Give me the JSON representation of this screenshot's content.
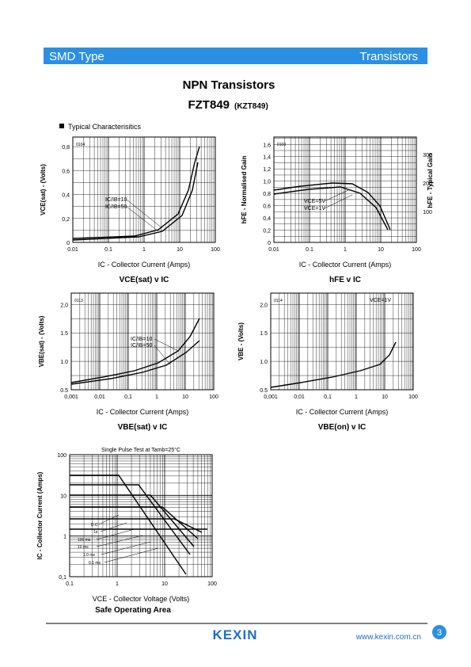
{
  "header": {
    "left": "SMD Type",
    "right": "Transistors"
  },
  "title": "NPN Transistors",
  "part": "FZT849",
  "alt_part": "(KZT849)",
  "section": "Typical Characterisitics",
  "figures": [
    {
      "code": "0104",
      "ylabel": "VCE(sat) - (Volts)",
      "xlabel": "IC - Collector Current (Amps)",
      "caption": "VCE(sat) v IC",
      "yticks": [
        "0",
        "0,2",
        "0,4",
        "0,6",
        "0,8"
      ],
      "xticks": [
        "0.01",
        "0.1",
        "1",
        "10",
        "100"
      ],
      "annotations": [
        "IC/IB=10",
        "IC/IB=50"
      ]
    },
    {
      "code": "0103",
      "ylabel": "hFE - Normalised Gain",
      "y2label": "hFE - Typical Gain",
      "xlabel": "IC - Collector Current (Amps)",
      "caption": "hFE v IC",
      "yticks": [
        "0",
        "0,2",
        "0,4",
        "0,6",
        "0,8",
        "1,0",
        "1,2",
        "1,4",
        "1,6"
      ],
      "y2ticks": [
        "100",
        "200",
        "300"
      ],
      "xticks": [
        "0.01",
        "0.1",
        "1",
        "10",
        "100"
      ],
      "annotations": [
        "VCE=5V",
        "VCE=1V"
      ]
    },
    {
      "code": "0113",
      "ylabel": "VBE(sat) - (Volts)",
      "xlabel": "IC - Collector Current (Amps)",
      "caption": "VBE(sat) v IC",
      "yticks": [
        "0.5",
        "1.0",
        "1.5",
        "2,0"
      ],
      "xticks": [
        "0,001",
        "0,01",
        "0,1",
        "1",
        "10",
        "100"
      ],
      "annotations": [
        "IC/IB=10",
        "IC/IB=50"
      ]
    },
    {
      "code": "0114",
      "ylabel": "VBE - (Volts)",
      "xlabel": "IC - Collector Current (Amps)",
      "caption": "VBE(on) v IC",
      "yticks": [
        "0.5",
        "1.0",
        "1.5",
        "2,0"
      ],
      "xticks": [
        "0,001",
        "0,01",
        "0,1",
        "1",
        "10",
        "100"
      ],
      "annotations": [
        "VCE=1V"
      ]
    },
    {
      "title": "Single Pulse Test at Tamb=25°C",
      "ylabel": "IC - Collector Current (Amps)",
      "xlabel": "VCE - Collector Voltage (Volts)",
      "caption": "Safe Operating Area",
      "yticks": [
        "0,1",
        "1",
        "10",
        "100"
      ],
      "xticks": [
        "0.1",
        "1",
        "10",
        "100"
      ],
      "annotations": [
        "D.C",
        "1s",
        "100 ms",
        "10 ms",
        "1.0 ms",
        "0.1 ms"
      ]
    }
  ],
  "footer": {
    "brand": "KEXIN",
    "url": "www.kexin.com.cn",
    "page": "3"
  }
}
